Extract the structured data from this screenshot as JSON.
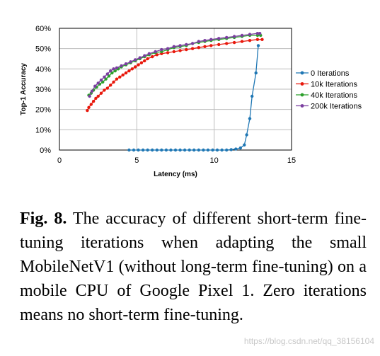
{
  "chart_data": {
    "type": "line",
    "title": "",
    "xlabel": "Latency (ms)",
    "ylabel": "Top-1 Accuracy",
    "xlim": [
      0,
      15
    ],
    "ylim": [
      0,
      60
    ],
    "x_ticks": [
      "0",
      "5",
      "10",
      "15"
    ],
    "y_ticks": [
      "0%",
      "10%",
      "20%",
      "30%",
      "40%",
      "50%",
      "60%"
    ],
    "grid": true,
    "legend_position": "right",
    "series": [
      {
        "name": "0 Iterations",
        "color": "#1f77b4",
        "points": [
          [
            4.5,
            0
          ],
          [
            4.8,
            0
          ],
          [
            5.1,
            0
          ],
          [
            5.4,
            0
          ],
          [
            5.7,
            0
          ],
          [
            6.0,
            0
          ],
          [
            6.3,
            0
          ],
          [
            6.6,
            0
          ],
          [
            6.9,
            0
          ],
          [
            7.2,
            0
          ],
          [
            7.5,
            0
          ],
          [
            7.8,
            0
          ],
          [
            8.1,
            0
          ],
          [
            8.4,
            0
          ],
          [
            8.7,
            0
          ],
          [
            9.0,
            0
          ],
          [
            9.3,
            0
          ],
          [
            9.6,
            0
          ],
          [
            9.9,
            0
          ],
          [
            10.2,
            0
          ],
          [
            10.5,
            0
          ],
          [
            10.8,
            0
          ],
          [
            11.1,
            0.2
          ],
          [
            11.4,
            0.5
          ],
          [
            11.7,
            1
          ],
          [
            11.95,
            2.5
          ],
          [
            12.1,
            7.5
          ],
          [
            12.3,
            15.5
          ],
          [
            12.45,
            26.5
          ],
          [
            12.7,
            38
          ],
          [
            12.85,
            51.5
          ]
        ]
      },
      {
        "name": "10k Iterations",
        "color": "#e8180c",
        "points": [
          [
            1.8,
            19.5
          ],
          [
            1.9,
            21
          ],
          [
            2.05,
            22.5
          ],
          [
            2.2,
            24
          ],
          [
            2.35,
            25.5
          ],
          [
            2.5,
            26.5
          ],
          [
            2.7,
            28
          ],
          [
            2.9,
            29.5
          ],
          [
            3.1,
            30.5
          ],
          [
            3.3,
            32
          ],
          [
            3.5,
            33.5
          ],
          [
            3.7,
            35
          ],
          [
            3.9,
            36
          ],
          [
            4.1,
            37
          ],
          [
            4.3,
            38
          ],
          [
            4.5,
            39
          ],
          [
            4.7,
            40
          ],
          [
            4.9,
            41
          ],
          [
            5.1,
            42
          ],
          [
            5.3,
            43
          ],
          [
            5.5,
            44
          ],
          [
            5.7,
            45
          ],
          [
            6.0,
            46
          ],
          [
            6.3,
            47
          ],
          [
            6.6,
            47.5
          ],
          [
            7.0,
            48
          ],
          [
            7.4,
            48.5
          ],
          [
            7.8,
            49
          ],
          [
            8.2,
            49.5
          ],
          [
            8.6,
            50
          ],
          [
            9.0,
            50.5
          ],
          [
            9.4,
            51
          ],
          [
            9.8,
            51.5
          ],
          [
            10.3,
            52
          ],
          [
            10.8,
            52.5
          ],
          [
            11.3,
            53
          ],
          [
            11.8,
            53.5
          ],
          [
            12.3,
            54
          ],
          [
            12.8,
            54.5
          ],
          [
            13.1,
            54.5
          ]
        ]
      },
      {
        "name": "40k Iterations",
        "color": "#2ca02c",
        "points": [
          [
            1.9,
            27
          ],
          [
            2.05,
            28
          ],
          [
            2.2,
            29.5
          ],
          [
            2.4,
            31
          ],
          [
            2.6,
            32.5
          ],
          [
            2.8,
            33.5
          ],
          [
            3.0,
            35
          ],
          [
            3.2,
            36.5
          ],
          [
            3.4,
            38
          ],
          [
            3.6,
            39
          ],
          [
            3.8,
            40
          ],
          [
            4.0,
            41
          ],
          [
            4.3,
            42
          ],
          [
            4.6,
            43
          ],
          [
            4.9,
            44
          ],
          [
            5.2,
            45
          ],
          [
            5.5,
            46
          ],
          [
            5.8,
            47
          ],
          [
            6.2,
            48
          ],
          [
            6.6,
            48.5
          ],
          [
            7.0,
            49.5
          ],
          [
            7.4,
            50.5
          ],
          [
            7.8,
            51
          ],
          [
            8.2,
            51.5
          ],
          [
            8.6,
            52.5
          ],
          [
            9.0,
            53
          ],
          [
            9.4,
            53.5
          ],
          [
            9.8,
            54
          ],
          [
            10.3,
            54.5
          ],
          [
            10.8,
            55
          ],
          [
            11.3,
            55.5
          ],
          [
            11.8,
            56
          ],
          [
            12.3,
            56.5
          ],
          [
            12.8,
            56.5
          ],
          [
            13.0,
            56.5
          ]
        ]
      },
      {
        "name": "200k Iterations",
        "color": "#7b3fa0",
        "points": [
          [
            1.95,
            26.5
          ],
          [
            2.1,
            29
          ],
          [
            2.3,
            31.5
          ],
          [
            2.5,
            33
          ],
          [
            2.7,
            34.5
          ],
          [
            2.9,
            36
          ],
          [
            3.1,
            37.5
          ],
          [
            3.3,
            39
          ],
          [
            3.5,
            40
          ],
          [
            3.7,
            40.5
          ],
          [
            4.0,
            41.5
          ],
          [
            4.3,
            42.5
          ],
          [
            4.6,
            43.5
          ],
          [
            4.9,
            44.5
          ],
          [
            5.2,
            45.5
          ],
          [
            5.5,
            46.5
          ],
          [
            5.8,
            47.5
          ],
          [
            6.2,
            48.5
          ],
          [
            6.6,
            49.5
          ],
          [
            7.0,
            50
          ],
          [
            7.4,
            51
          ],
          [
            7.8,
            51.5
          ],
          [
            8.2,
            52
          ],
          [
            8.6,
            52.5
          ],
          [
            9.0,
            53.5
          ],
          [
            9.4,
            54
          ],
          [
            9.8,
            54.5
          ],
          [
            10.3,
            55
          ],
          [
            10.8,
            55.5
          ],
          [
            11.3,
            56
          ],
          [
            11.8,
            56.5
          ],
          [
            12.3,
            57
          ],
          [
            12.8,
            57.5
          ],
          [
            12.95,
            57.5
          ]
        ]
      }
    ]
  },
  "caption": {
    "label": "Fig. 8.",
    "text": "The accuracy of different short-term fine-tuning iterations when adapting the small MobileNetV1 (without long-term fine-tuning) on a mobile CPU of Google Pixel 1. Zero iterations means no short-term fine-tuning."
  },
  "watermark": "https://blog.csdn.net/qq_38156104"
}
